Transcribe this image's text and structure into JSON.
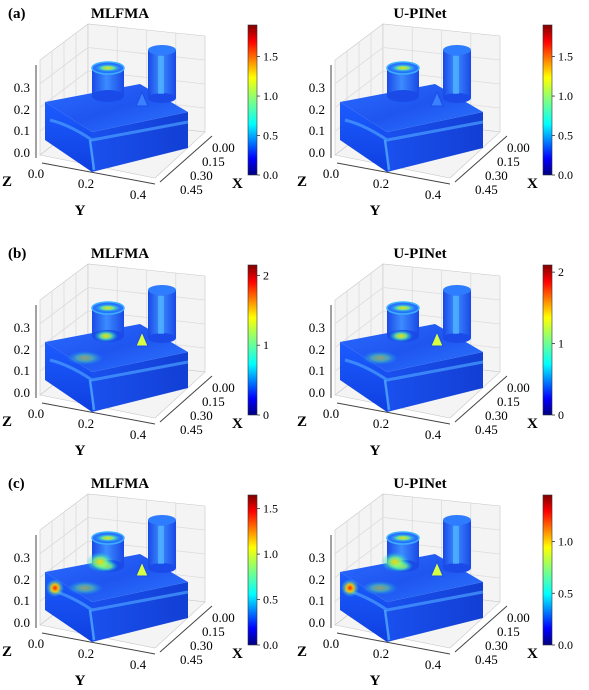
{
  "chart_data": [
    {
      "type": "heatmap",
      "panel": "(a)",
      "title": "MLFMA",
      "z_ticks": [
        "0.0",
        "0.1",
        "0.2",
        "0.3"
      ],
      "y_ticks": [
        "0.0",
        "0.2",
        "0.4"
      ],
      "x_ticks": [
        "0.00",
        "0.15",
        "0.30",
        "0.45"
      ],
      "axis_labels": {
        "x": "X",
        "y": "Y",
        "z": "Z"
      },
      "colorbar": {
        "range": [
          0.0,
          1.9
        ],
        "ticks": [
          "0.0",
          "0.5",
          "1.0",
          "1.5"
        ],
        "tick_values": [
          0.0,
          0.5,
          1.0,
          1.5
        ],
        "colormap": "jet"
      }
    },
    {
      "type": "heatmap",
      "panel": "",
      "title": "U-PINet",
      "z_ticks": [
        "0.0",
        "0.1",
        "0.2",
        "0.3"
      ],
      "y_ticks": [
        "0.0",
        "0.2",
        "0.4"
      ],
      "x_ticks": [
        "0.00",
        "0.15",
        "0.30",
        "0.45"
      ],
      "axis_labels": {
        "x": "X",
        "y": "Y",
        "z": "Z"
      },
      "colorbar": {
        "range": [
          0.0,
          1.9
        ],
        "ticks": [
          "0.0",
          "0.5",
          "1.0",
          "1.5"
        ],
        "tick_values": [
          0.0,
          0.5,
          1.0,
          1.5
        ],
        "colormap": "jet"
      }
    },
    {
      "type": "heatmap",
      "panel": "(b)",
      "title": "MLFMA",
      "z_ticks": [
        "0.0",
        "0.1",
        "0.2",
        "0.3"
      ],
      "y_ticks": [
        "0.0",
        "0.2",
        "0.4"
      ],
      "x_ticks": [
        "0.00",
        "0.15",
        "0.30",
        "0.45"
      ],
      "axis_labels": {
        "x": "X",
        "y": "Y",
        "z": "Z"
      },
      "colorbar": {
        "range": [
          0,
          2.15
        ],
        "ticks": [
          "0",
          "1",
          "2"
        ],
        "tick_values": [
          0,
          1,
          2
        ],
        "colormap": "jet"
      }
    },
    {
      "type": "heatmap",
      "panel": "",
      "title": "U-PINet",
      "z_ticks": [
        "0.0",
        "0.1",
        "0.2",
        "0.3"
      ],
      "y_ticks": [
        "0.0",
        "0.2",
        "0.4"
      ],
      "x_ticks": [
        "0.00",
        "0.15",
        "0.30",
        "0.45"
      ],
      "axis_labels": {
        "x": "X",
        "y": "Y",
        "z": "Z"
      },
      "colorbar": {
        "range": [
          0,
          2.1
        ],
        "ticks": [
          "0",
          "1",
          "2"
        ],
        "tick_values": [
          0,
          1,
          2
        ],
        "colormap": "jet"
      }
    },
    {
      "type": "heatmap",
      "panel": "(c)",
      "title": "MLFMA",
      "z_ticks": [
        "0.0",
        "0.1",
        "0.2",
        "0.3"
      ],
      "y_ticks": [
        "0.0",
        "0.2",
        "0.4"
      ],
      "x_ticks": [
        "0.00",
        "0.15",
        "0.30",
        "0.45"
      ],
      "axis_labels": {
        "x": "X",
        "y": "Y",
        "z": "Z"
      },
      "colorbar": {
        "range": [
          0.0,
          1.65
        ],
        "ticks": [
          "0.0",
          "0.5",
          "1.0",
          "1.5"
        ],
        "tick_values": [
          0.0,
          0.5,
          1.0,
          1.5
        ],
        "colormap": "jet"
      }
    },
    {
      "type": "heatmap",
      "panel": "",
      "title": "U-PINet",
      "z_ticks": [
        "0.0",
        "0.1",
        "0.2",
        "0.3"
      ],
      "y_ticks": [
        "0.0",
        "0.2",
        "0.4"
      ],
      "x_ticks": [
        "0.00",
        "0.15",
        "0.30",
        "0.45"
      ],
      "axis_labels": {
        "x": "X",
        "y": "Y",
        "z": "Z"
      },
      "colorbar": {
        "range": [
          0.0,
          1.45
        ],
        "ticks": [
          "0.0",
          "0.5",
          "1.0"
        ],
        "tick_values": [
          0.0,
          0.5,
          1.0
        ],
        "colormap": "jet"
      }
    }
  ]
}
